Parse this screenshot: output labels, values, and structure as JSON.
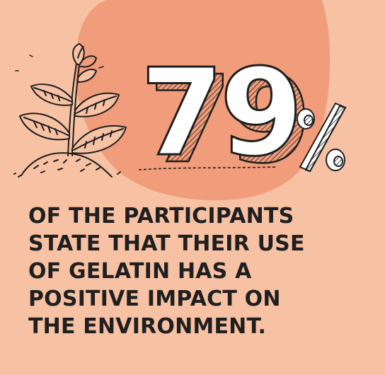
{
  "colors": {
    "background": "#f7c1a4",
    "blob": "#f19c7a",
    "ink": "#1f1f1f",
    "number_fill": "#ffffff"
  },
  "stat": {
    "number": "79",
    "unit": "%"
  },
  "caption": {
    "lines": [
      "OF THE PARTICIPANTS",
      "STATE THAT THEIR USE",
      "OF GELATIN HAS A",
      "POSITIVE IMPACT ON",
      "THE ENVIRONMENT."
    ]
  },
  "icons": {
    "plant": "sprouting-plant-icon"
  }
}
